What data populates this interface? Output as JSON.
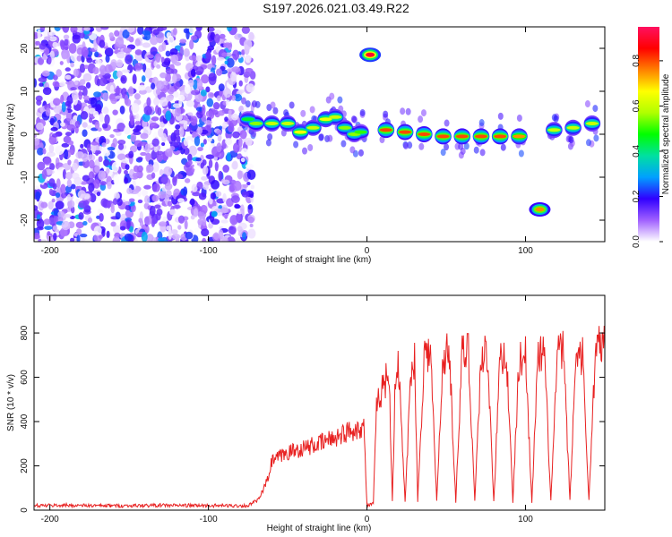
{
  "title": "S197.2026.021.03.49.R22",
  "chart_data": [
    {
      "type": "heatmap",
      "xlabel": "Height of straight line (km)",
      "ylabel": "Frequency (Hz)",
      "xlim": [
        -210,
        150
      ],
      "ylim": [
        -25,
        25
      ],
      "xticks": [
        -200,
        -100,
        0,
        100
      ],
      "yticks": [
        -20,
        -10,
        0,
        10,
        20
      ],
      "colorbar": {
        "label": "Normalized spectral amplitude",
        "range": [
          0.0,
          0.95
        ],
        "ticks": [
          "0.0",
          "0.2",
          "0.4",
          "0.6",
          "0.8"
        ],
        "colors": [
          "#ffffff",
          "#a060ff",
          "#3000ff",
          "#00a0ff",
          "#00e0a0",
          "#00ff00",
          "#b0ff00",
          "#ffff00",
          "#ff8000",
          "#ff0000",
          "#ff1060"
        ]
      },
      "noise_region": {
        "x_range": [
          -210,
          -72
        ],
        "description_amplitude": 0.25
      },
      "ridge": [
        {
          "x": -75,
          "freq": 3.5,
          "amp": 0.45
        },
        {
          "x": -70,
          "freq": 2.5,
          "amp": 0.55
        },
        {
          "x": -60,
          "freq": 2.5,
          "amp": 0.6
        },
        {
          "x": -50,
          "freq": 2.5,
          "amp": 0.6
        },
        {
          "x": -42,
          "freq": 0.5,
          "amp": 0.65
        },
        {
          "x": -34,
          "freq": 1.5,
          "amp": 0.6
        },
        {
          "x": -26,
          "freq": 3.5,
          "amp": 0.65
        },
        {
          "x": -20,
          "freq": 4.0,
          "amp": 0.6
        },
        {
          "x": -14,
          "freq": 1.5,
          "amp": 0.55
        },
        {
          "x": -8,
          "freq": 0.0,
          "amp": 0.55
        },
        {
          "x": -4,
          "freq": 0.5,
          "amp": 0.5
        },
        {
          "x": 12,
          "freq": 1.0,
          "amp": 0.8
        },
        {
          "x": 24,
          "freq": 0.5,
          "amp": 0.8
        },
        {
          "x": 36,
          "freq": 0.0,
          "amp": 0.8
        },
        {
          "x": 48,
          "freq": -0.5,
          "amp": 0.8
        },
        {
          "x": 60,
          "freq": -0.5,
          "amp": 0.8
        },
        {
          "x": 72,
          "freq": -0.5,
          "amp": 0.8
        },
        {
          "x": 84,
          "freq": -0.5,
          "amp": 0.8
        },
        {
          "x": 96,
          "freq": -0.5,
          "amp": 0.75
        },
        {
          "x": 118,
          "freq": 1.0,
          "amp": 0.6
        },
        {
          "x": 130,
          "freq": 1.5,
          "amp": 0.6
        },
        {
          "x": 142,
          "freq": 2.5,
          "amp": 0.6
        }
      ],
      "isolated_blobs": [
        {
          "x": 2,
          "freq": 18.5,
          "amp": 0.9
        },
        {
          "x": 109,
          "freq": -17.5,
          "amp": 0.75
        }
      ]
    },
    {
      "type": "line",
      "xlabel": "Height of straight line (km)",
      "ylabel": "SNR (10 * v/v)",
      "xlim": [
        -210,
        150
      ],
      "ylim": [
        0,
        970
      ],
      "xticks": [
        -200,
        -100,
        0,
        100
      ],
      "yticks": [
        0,
        200,
        400,
        600,
        800
      ],
      "series": [
        {
          "name": "SNR",
          "color": "#e82020",
          "x": [
            -210,
            -190,
            -170,
            -150,
            -130,
            -110,
            -90,
            -75,
            -68,
            -62,
            -60,
            -55,
            -50,
            -40,
            -30,
            -20,
            -10,
            -2,
            0,
            4,
            6,
            8,
            10,
            12,
            14,
            16,
            18,
            20,
            24,
            28,
            30,
            32,
            36,
            40,
            44,
            48,
            52,
            56,
            60,
            64,
            68,
            72,
            76,
            80,
            84,
            88,
            92,
            96,
            100,
            104,
            108,
            112,
            116,
            120,
            124,
            128,
            132,
            136,
            140,
            144,
            148,
            150
          ],
          "values": [
            20,
            22,
            20,
            20,
            22,
            21,
            20,
            20,
            50,
            150,
            220,
            240,
            260,
            280,
            300,
            330,
            360,
            380,
            20,
            30,
            450,
            520,
            560,
            590,
            600,
            40,
            620,
            640,
            40,
            650,
            690,
            40,
            700,
            720,
            40,
            700,
            710,
            40,
            700,
            720,
            40,
            690,
            710,
            40,
            700,
            700,
            40,
            680,
            700,
            40,
            700,
            690,
            40,
            700,
            720,
            40,
            730,
            700,
            40,
            720,
            750,
            740
          ]
        }
      ]
    }
  ]
}
